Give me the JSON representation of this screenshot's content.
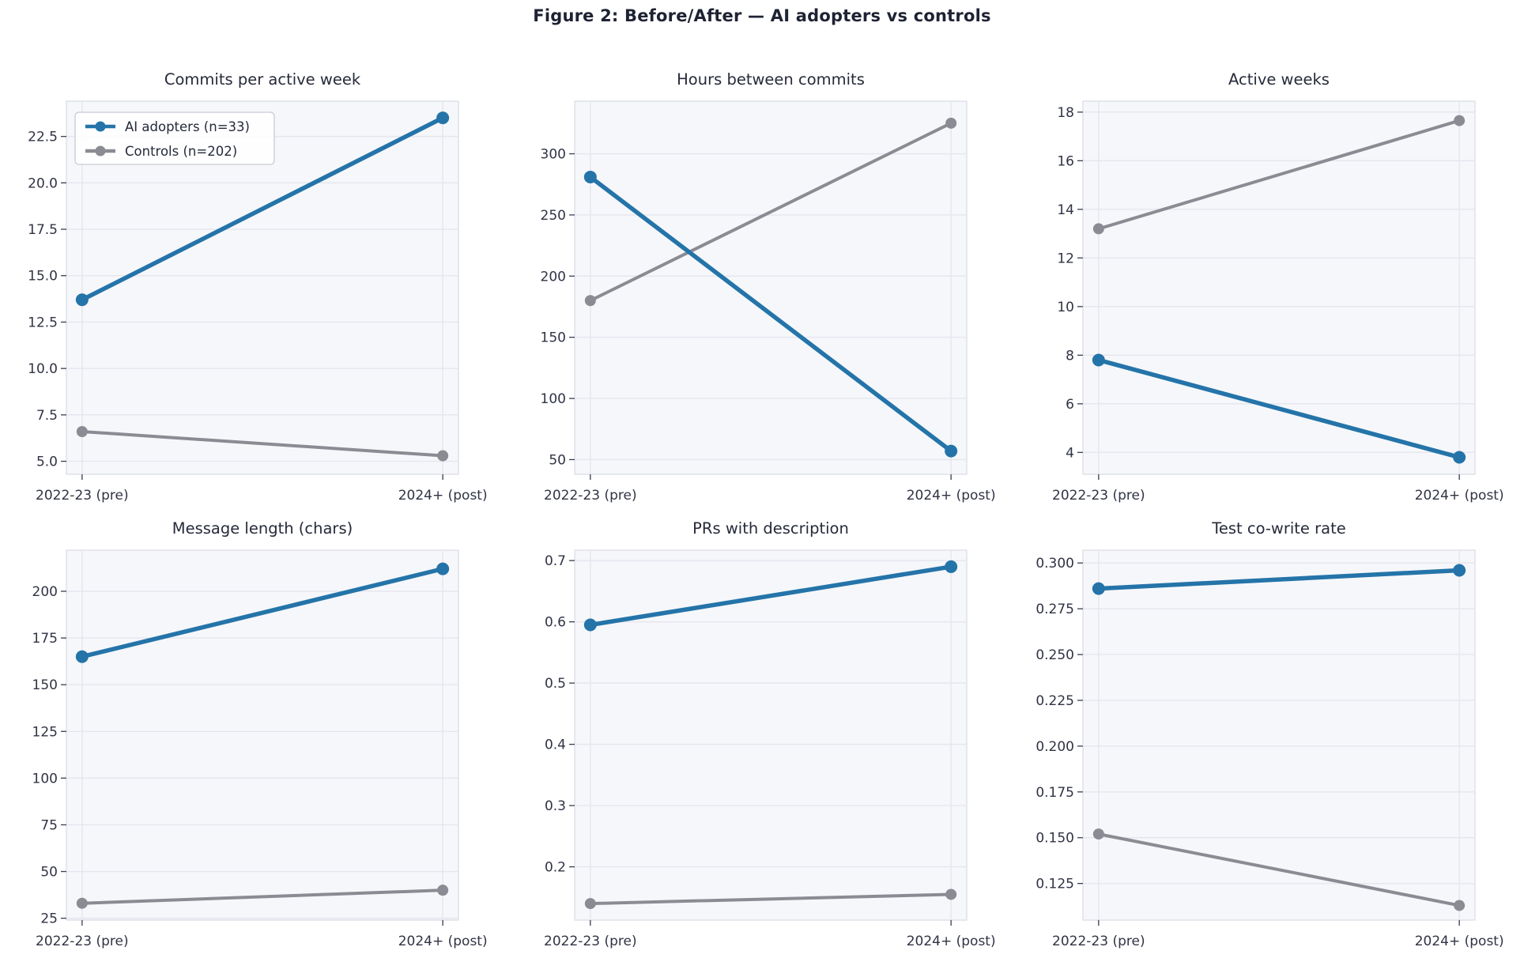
{
  "figure_title": "Figure 2: Before/After — AI adopters vs controls",
  "x_categories": [
    "2022-23 (pre)",
    "2024+ (post)"
  ],
  "legend": {
    "entries": [
      {
        "label": "AI adopters (n=33)",
        "key": "ai"
      },
      {
        "label": "Controls (n=202)",
        "key": "controls"
      }
    ]
  },
  "colors": {
    "ai": "#2474a9",
    "controls": "#8b8b93",
    "axes_bg": "#f6f7fa",
    "grid": "#e5e6ef",
    "spine": "#d9dbe4",
    "tick": "#3b3e4e",
    "text": "#303344",
    "title_text": "#262a3a",
    "legend_border": "#c9cbd4",
    "legend_bg": "rgba(255,255,255,0.85)"
  },
  "chart_data": [
    {
      "type": "line",
      "title": "Commits per active week",
      "x": [
        "2022-23 (pre)",
        "2024+ (post)"
      ],
      "series": [
        {
          "name": "AI adopters (n=33)",
          "key": "ai",
          "values": [
            13.7,
            23.5
          ]
        },
        {
          "name": "Controls (n=202)",
          "key": "controls",
          "values": [
            6.6,
            5.3
          ]
        }
      ],
      "ytick_labels": [
        "5.0",
        "7.5",
        "10.0",
        "12.5",
        "15.0",
        "17.5",
        "20.0",
        "22.5"
      ],
      "yticks": [
        5.0,
        7.5,
        10.0,
        12.5,
        15.0,
        17.5,
        20.0,
        22.5
      ],
      "ylim": [
        4.3,
        24.4
      ],
      "grid": true,
      "legend": true,
      "legend_position": "upper-left"
    },
    {
      "type": "line",
      "title": "Hours between commits",
      "x": [
        "2022-23 (pre)",
        "2024+ (post)"
      ],
      "series": [
        {
          "name": "AI adopters (n=33)",
          "key": "ai",
          "values": [
            281,
            57
          ]
        },
        {
          "name": "Controls (n=202)",
          "key": "controls",
          "values": [
            180,
            325
          ]
        }
      ],
      "ytick_labels": [
        "50",
        "100",
        "150",
        "200",
        "250",
        "300"
      ],
      "yticks": [
        50,
        100,
        150,
        200,
        250,
        300
      ],
      "ylim": [
        38,
        343
      ],
      "grid": true,
      "legend": false
    },
    {
      "type": "line",
      "title": "Active weeks",
      "x": [
        "2022-23 (pre)",
        "2024+ (post)"
      ],
      "series": [
        {
          "name": "AI adopters (n=33)",
          "key": "ai",
          "values": [
            7.8,
            3.8
          ]
        },
        {
          "name": "Controls (n=202)",
          "key": "controls",
          "values": [
            13.2,
            17.65
          ]
        }
      ],
      "ytick_labels": [
        "4",
        "6",
        "8",
        "10",
        "12",
        "14",
        "16",
        "18"
      ],
      "yticks": [
        4,
        6,
        8,
        10,
        12,
        14,
        16,
        18
      ],
      "ylim": [
        3.1,
        18.45
      ],
      "grid": true,
      "legend": false
    },
    {
      "type": "line",
      "title": "Message length (chars)",
      "x": [
        "2022-23 (pre)",
        "2024+ (post)"
      ],
      "series": [
        {
          "name": "AI adopters (n=33)",
          "key": "ai",
          "values": [
            165,
            212
          ]
        },
        {
          "name": "Controls (n=202)",
          "key": "controls",
          "values": [
            33,
            40
          ]
        }
      ],
      "ytick_labels": [
        "25",
        "50",
        "75",
        "100",
        "125",
        "150",
        "175",
        "200"
      ],
      "yticks": [
        25,
        50,
        75,
        100,
        125,
        150,
        175,
        200
      ],
      "ylim": [
        24,
        222
      ],
      "grid": true,
      "legend": false
    },
    {
      "type": "line",
      "title": "PRs with description",
      "x": [
        "2022-23 (pre)",
        "2024+ (post)"
      ],
      "series": [
        {
          "name": "AI adopters (n=33)",
          "key": "ai",
          "values": [
            0.595,
            0.69
          ]
        },
        {
          "name": "Controls (n=202)",
          "key": "controls",
          "values": [
            0.14,
            0.155
          ]
        }
      ],
      "ytick_labels": [
        "0.2",
        "0.3",
        "0.4",
        "0.5",
        "0.6",
        "0.7"
      ],
      "yticks": [
        0.2,
        0.3,
        0.4,
        0.5,
        0.6,
        0.7
      ],
      "ylim": [
        0.113,
        0.717
      ],
      "grid": true,
      "legend": false
    },
    {
      "type": "line",
      "title": "Test co-write rate",
      "x": [
        "2022-23 (pre)",
        "2024+ (post)"
      ],
      "series": [
        {
          "name": "AI adopters (n=33)",
          "key": "ai",
          "values": [
            0.286,
            0.296
          ]
        },
        {
          "name": "Controls (n=202)",
          "key": "controls",
          "values": [
            0.152,
            0.113
          ]
        }
      ],
      "ytick_labels": [
        "0.125",
        "0.150",
        "0.175",
        "0.200",
        "0.225",
        "0.250",
        "0.275",
        "0.300"
      ],
      "yticks": [
        0.125,
        0.15,
        0.175,
        0.2,
        0.225,
        0.25,
        0.275,
        0.3
      ],
      "ylim": [
        0.105,
        0.307
      ],
      "grid": true,
      "legend": false
    }
  ],
  "style": {
    "line_width": {
      "ai": 5.5,
      "controls": 4
    },
    "marker_radius": {
      "ai": 8,
      "controls": 7
    }
  }
}
